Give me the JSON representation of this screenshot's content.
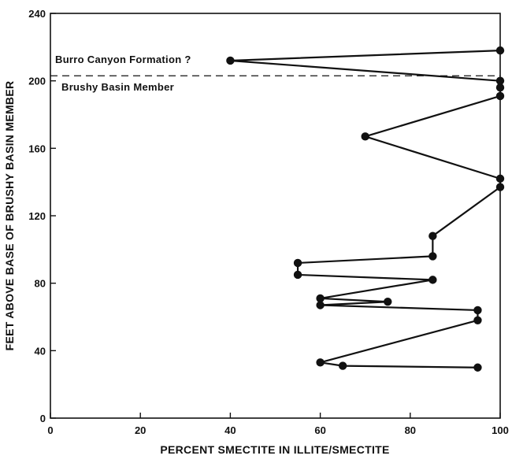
{
  "chart_data": {
    "type": "line",
    "xlabel": "PERCENT SMECTITE IN ILLITE/SMECTITE",
    "ylabel": "FEET ABOVE BASE OF BRUSHY BASIN MEMBER",
    "xlim": [
      0,
      100
    ],
    "ylim": [
      0,
      240
    ],
    "x_ticks": [
      0,
      20,
      40,
      60,
      80,
      100
    ],
    "y_ticks": [
      0,
      40,
      80,
      120,
      160,
      200,
      240
    ],
    "grid": false,
    "legend": "none",
    "series": [
      {
        "x": [
          95,
          65,
          60,
          95,
          95,
          60,
          75,
          60,
          85,
          55,
          55,
          85,
          85,
          100,
          100,
          70,
          100,
          100,
          100,
          40,
          100
        ],
        "y": [
          30,
          31,
          33,
          58,
          64,
          67,
          69,
          71,
          82,
          85,
          92,
          96,
          108,
          137,
          142,
          167,
          191,
          196,
          200,
          212,
          218
        ]
      }
    ],
    "reference_line": {
      "y": 203,
      "style": "dashed"
    },
    "annotations": {
      "above": "Burro Canyon Formation ?",
      "below": "Brushy Basin Member"
    },
    "colors": {
      "line": "#111111",
      "marker": "#111111",
      "axis": "#111111"
    }
  }
}
